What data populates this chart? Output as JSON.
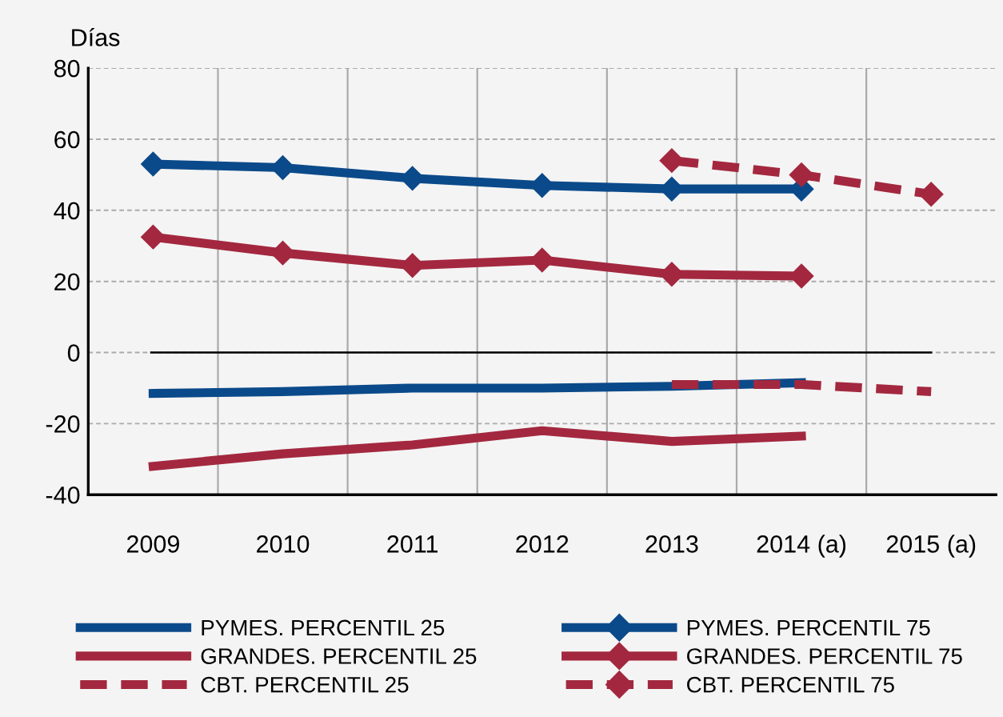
{
  "chart_data": {
    "type": "line",
    "ylabel": "Días",
    "categories": [
      "2009",
      "2010",
      "2011",
      "2012",
      "2013",
      "2014 (a)",
      "2015 (a)"
    ],
    "series": [
      {
        "name": "PYMES. PERCENTIL 25",
        "color": "#0b4a8a",
        "marker": "none",
        "line_style": "solid",
        "values": [
          -11.5,
          -11,
          -10,
          -10,
          -9.5,
          -8.5,
          null
        ]
      },
      {
        "name": "PYMES. PERCENTIL 75",
        "color": "#0b4a8a",
        "marker": "diamond",
        "line_style": "solid",
        "values": [
          53,
          52,
          49,
          47,
          46,
          46,
          null
        ]
      },
      {
        "name": "GRANDES. PERCENTIL 25",
        "color": "#a3283f",
        "marker": "none",
        "line_style": "solid",
        "values": [
          -32,
          -28.5,
          -26,
          -22,
          -25,
          -23.5,
          null
        ]
      },
      {
        "name": "GRANDES. PERCENTIL 75",
        "color": "#a3283f",
        "marker": "diamond",
        "line_style": "solid",
        "values": [
          32.5,
          28,
          24.5,
          26,
          22,
          21.5,
          null
        ]
      },
      {
        "name": "CBT. PERCENTIL 25",
        "color": "#a3283f",
        "marker": "none",
        "line_style": "dashed",
        "values": [
          null,
          null,
          null,
          null,
          -9,
          -9,
          -11
        ]
      },
      {
        "name": "CBT. PERCENTIL 75",
        "color": "#a3283f",
        "marker": "diamond",
        "line_style": "dashed",
        "values": [
          null,
          null,
          null,
          null,
          54,
          50,
          44.5
        ]
      }
    ],
    "ylim": [
      -40,
      80
    ],
    "yticks": [
      -40,
      -20,
      0,
      20,
      40,
      60,
      80
    ],
    "ref_lines": [
      {
        "axis": "y",
        "value": 0,
        "label": null,
        "color": "#000000"
      }
    ],
    "grid": true,
    "legend": "bottom"
  }
}
